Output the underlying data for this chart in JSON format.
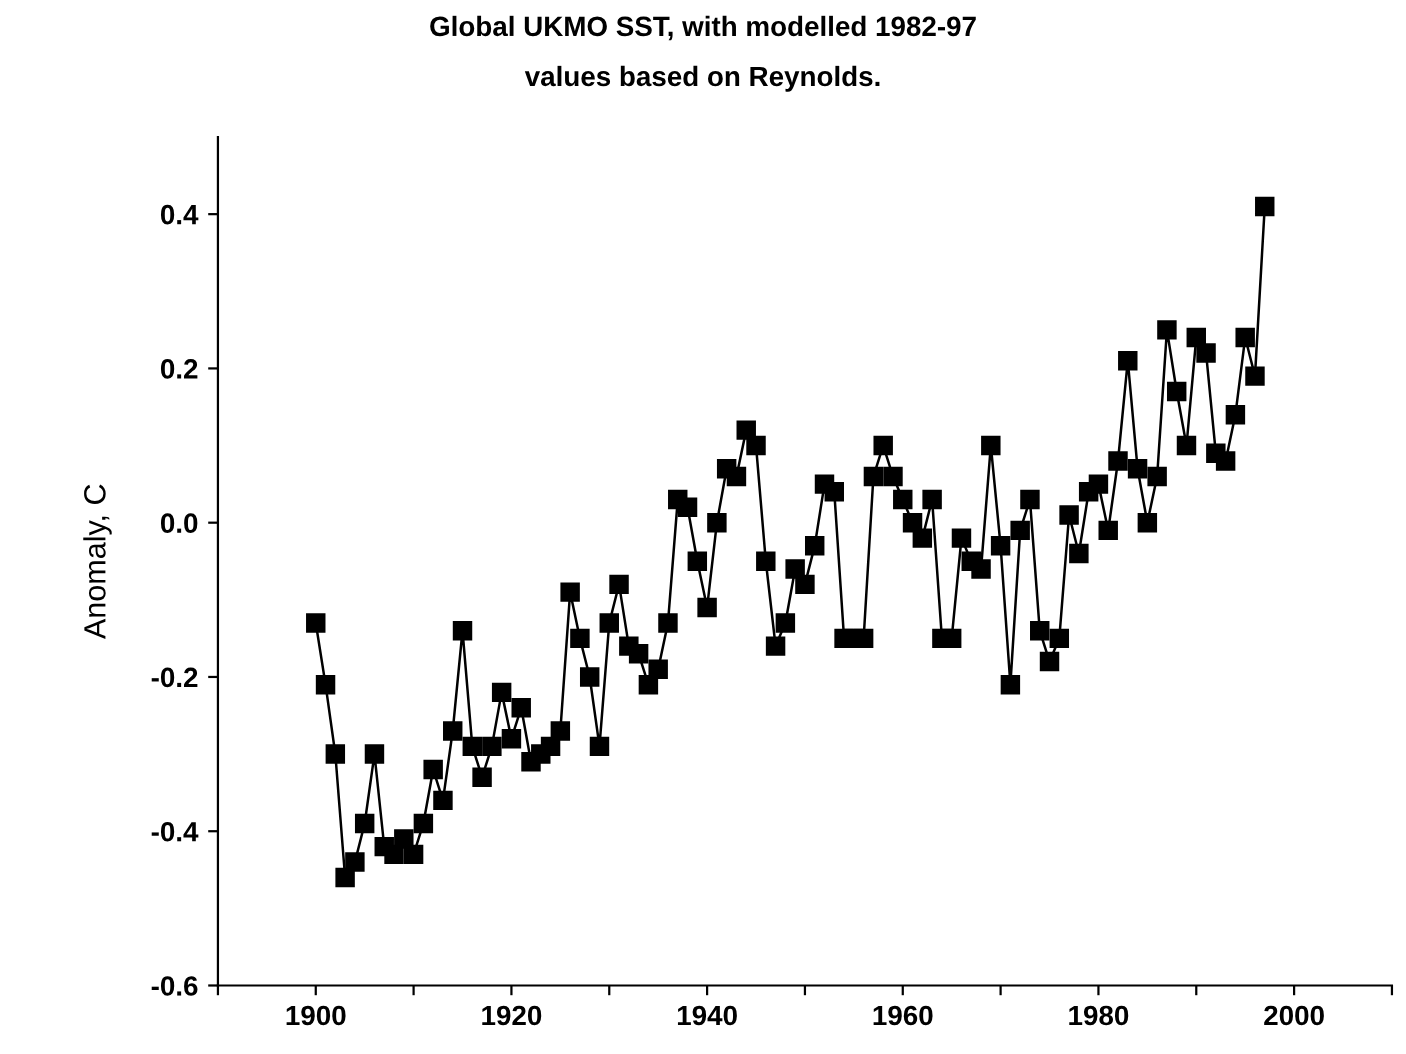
{
  "chart_data": {
    "type": "line",
    "title": "Global UKMO SST, with modelled 1982-97\nvalues based on Reynolds.",
    "ylabel": "Anomaly, C",
    "x": [
      1900,
      1901,
      1902,
      1903,
      1904,
      1905,
      1906,
      1907,
      1908,
      1909,
      1910,
      1911,
      1912,
      1913,
      1914,
      1915,
      1916,
      1917,
      1918,
      1919,
      1920,
      1921,
      1922,
      1923,
      1924,
      1925,
      1926,
      1927,
      1928,
      1929,
      1930,
      1931,
      1932,
      1933,
      1934,
      1935,
      1936,
      1937,
      1938,
      1939,
      1940,
      1941,
      1942,
      1943,
      1944,
      1945,
      1946,
      1947,
      1948,
      1949,
      1950,
      1951,
      1952,
      1953,
      1954,
      1955,
      1956,
      1957,
      1958,
      1959,
      1960,
      1961,
      1962,
      1963,
      1964,
      1965,
      1966,
      1967,
      1968,
      1969,
      1970,
      1971,
      1972,
      1973,
      1974,
      1975,
      1976,
      1977,
      1978,
      1979,
      1980,
      1981,
      1982,
      1983,
      1984,
      1985,
      1986,
      1987,
      1988,
      1989,
      1990,
      1991,
      1992,
      1993,
      1994,
      1995,
      1996,
      1997
    ],
    "series": [
      {
        "color": "#000000",
        "values": [
          -0.13,
          -0.21,
          -0.3,
          -0.46,
          -0.44,
          -0.39,
          -0.3,
          -0.42,
          -0.43,
          -0.41,
          -0.43,
          -0.39,
          -0.32,
          -0.36,
          -0.27,
          -0.14,
          -0.29,
          -0.33,
          -0.29,
          -0.22,
          -0.28,
          -0.24,
          -0.31,
          -0.3,
          -0.29,
          -0.27,
          -0.09,
          -0.15,
          -0.2,
          -0.29,
          -0.13,
          -0.08,
          -0.16,
          -0.17,
          -0.21,
          -0.19,
          -0.13,
          0.03,
          0.02,
          -0.05,
          -0.11,
          0.0,
          0.07,
          0.06,
          0.12,
          0.1,
          -0.05,
          -0.16,
          -0.13,
          -0.06,
          -0.08,
          -0.03,
          0.05,
          0.04,
          -0.15,
          -0.15,
          -0.15,
          0.06,
          0.1,
          0.06,
          0.03,
          0.0,
          -0.02,
          0.03,
          -0.15,
          -0.15,
          -0.02,
          -0.05,
          -0.06,
          0.1,
          -0.03,
          -0.21,
          -0.01,
          0.03,
          -0.14,
          -0.18,
          -0.15,
          0.01,
          -0.04,
          0.04,
          0.05,
          -0.01,
          0.08,
          0.21,
          0.07,
          0.0,
          0.06,
          0.25,
          0.17,
          0.1,
          0.24,
          0.22,
          0.09,
          0.08,
          0.14,
          0.24,
          0.19,
          0.41
        ]
      }
    ],
    "xlim": [
      1890,
      2010
    ],
    "ylim": [
      -0.6,
      0.5
    ],
    "xticks": [
      {
        "value": 1890,
        "label": null
      },
      1900,
      {
        "value": 1910,
        "label": null
      },
      1920,
      {
        "value": 1930,
        "label": null
      },
      1940,
      {
        "value": 1950,
        "label": null
      },
      1960,
      {
        "value": 1970,
        "label": null
      },
      1980,
      {
        "value": 1990,
        "label": null
      },
      2000,
      {
        "value": 2010,
        "label": null
      }
    ],
    "yticks": [
      {
        "value": -0.6,
        "label": "-0.6"
      },
      {
        "value": -0.4,
        "label": "-0.4"
      },
      {
        "value": -0.2,
        "label": "-0.2"
      },
      {
        "value": 0.0,
        "label": "0.0"
      },
      {
        "value": 0.2,
        "label": "0.2"
      },
      {
        "value": 0.4,
        "label": "0.4"
      }
    ],
    "marker": "square",
    "line_style": "solid",
    "grid": false,
    "legend": false
  }
}
